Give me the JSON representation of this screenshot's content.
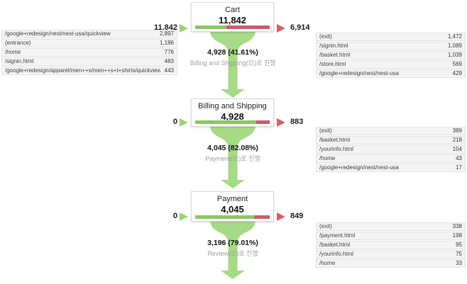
{
  "colors": {
    "bar_green": "#8cc763",
    "bar_red": "#cd5a6c",
    "arrow_green": "#9ad377",
    "arrow_red": "#d4606b",
    "funnel_green": "#a6da86",
    "continue_label_gray": "#9e9e9e"
  },
  "stages": [
    {
      "title": "Cart",
      "value": "11,842",
      "in_value": "11,842",
      "out_value": "6,914",
      "bar_pct": 41.61,
      "continue_value": "4,928 (41.61%)",
      "continue_label": "Billing and Shipping(으)로 진행",
      "in_rows": [
        {
          "label": "/google+redesign/nest/nest-usa/quickview",
          "value": "2,897"
        },
        {
          "label": "(entrance)",
          "value": "1,186"
        },
        {
          "label": "/home",
          "value": "776"
        },
        {
          "label": "/signin.html",
          "value": "483"
        },
        {
          "label": "/google+redesign/apparel/men++s/men++s+t+shirts/quickview",
          "value": "443"
        }
      ],
      "out_rows": [
        {
          "label": "(exit)",
          "value": "1,472"
        },
        {
          "label": "/signin.html",
          "value": "1,089"
        },
        {
          "label": "/basket.html",
          "value": "1,039"
        },
        {
          "label": "/store.html",
          "value": "569"
        },
        {
          "label": "/google+redesign/nest/nest-usa",
          "value": "429"
        }
      ]
    },
    {
      "title": "Billing and Shipping",
      "value": "4,928",
      "in_value": "0",
      "out_value": "883",
      "bar_pct": 82.08,
      "continue_value": "4,045 (82.08%)",
      "continue_label": "Payment(으)로 진행",
      "out_rows": [
        {
          "label": "(exit)",
          "value": "389"
        },
        {
          "label": "/basket.html",
          "value": "218"
        },
        {
          "label": "/yourinfo.html",
          "value": "104"
        },
        {
          "label": "/home",
          "value": "43"
        },
        {
          "label": "/google+redesign/nest/nest-usa",
          "value": "17"
        }
      ]
    },
    {
      "title": "Payment",
      "value": "4,045",
      "in_value": "0",
      "out_value": "849",
      "bar_pct": 79.01,
      "continue_value": "3,196 (79.01%)",
      "continue_label": "Review(으)로 진행",
      "out_rows": [
        {
          "label": "(exit)",
          "value": "338"
        },
        {
          "label": "/payment.html",
          "value": "198"
        },
        {
          "label": "/basket.html",
          "value": "95"
        },
        {
          "label": "/yourinfo.html",
          "value": "75"
        },
        {
          "label": "/home",
          "value": "33"
        }
      ]
    }
  ],
  "chart_data": {
    "type": "funnel",
    "title": "",
    "stages": [
      {
        "name": "Cart",
        "total": 11842,
        "inflow": 11842,
        "exits": 6914,
        "continued": 4928,
        "continued_pct": 41.61,
        "proceeds_to": "Billing and Shipping",
        "inflow_sources": [
          [
            "/google+redesign/nest/nest-usa/quickview",
            2897
          ],
          [
            "(entrance)",
            1186
          ],
          [
            "/home",
            776
          ],
          [
            "/signin.html",
            483
          ],
          [
            "/google+redesign/apparel/men++s/men++s+t+shirts/quickview",
            443
          ]
        ],
        "exit_destinations": [
          [
            "(exit)",
            1472
          ],
          [
            "/signin.html",
            1089
          ],
          [
            "/basket.html",
            1039
          ],
          [
            "/store.html",
            569
          ],
          [
            "/google+redesign/nest/nest-usa",
            429
          ]
        ]
      },
      {
        "name": "Billing and Shipping",
        "total": 4928,
        "inflow": 0,
        "exits": 883,
        "continued": 4045,
        "continued_pct": 82.08,
        "proceeds_to": "Payment",
        "exit_destinations": [
          [
            "(exit)",
            389
          ],
          [
            "/basket.html",
            218
          ],
          [
            "/yourinfo.html",
            104
          ],
          [
            "/home",
            43
          ],
          [
            "/google+redesign/nest/nest-usa",
            17
          ]
        ]
      },
      {
        "name": "Payment",
        "total": 4045,
        "inflow": 0,
        "exits": 849,
        "continued": 3196,
        "continued_pct": 79.01,
        "proceeds_to": "Review",
        "exit_destinations": [
          [
            "(exit)",
            338
          ],
          [
            "/payment.html",
            198
          ],
          [
            "/basket.html",
            95
          ],
          [
            "/yourinfo.html",
            75
          ],
          [
            "/home",
            33
          ]
        ]
      }
    ]
  }
}
